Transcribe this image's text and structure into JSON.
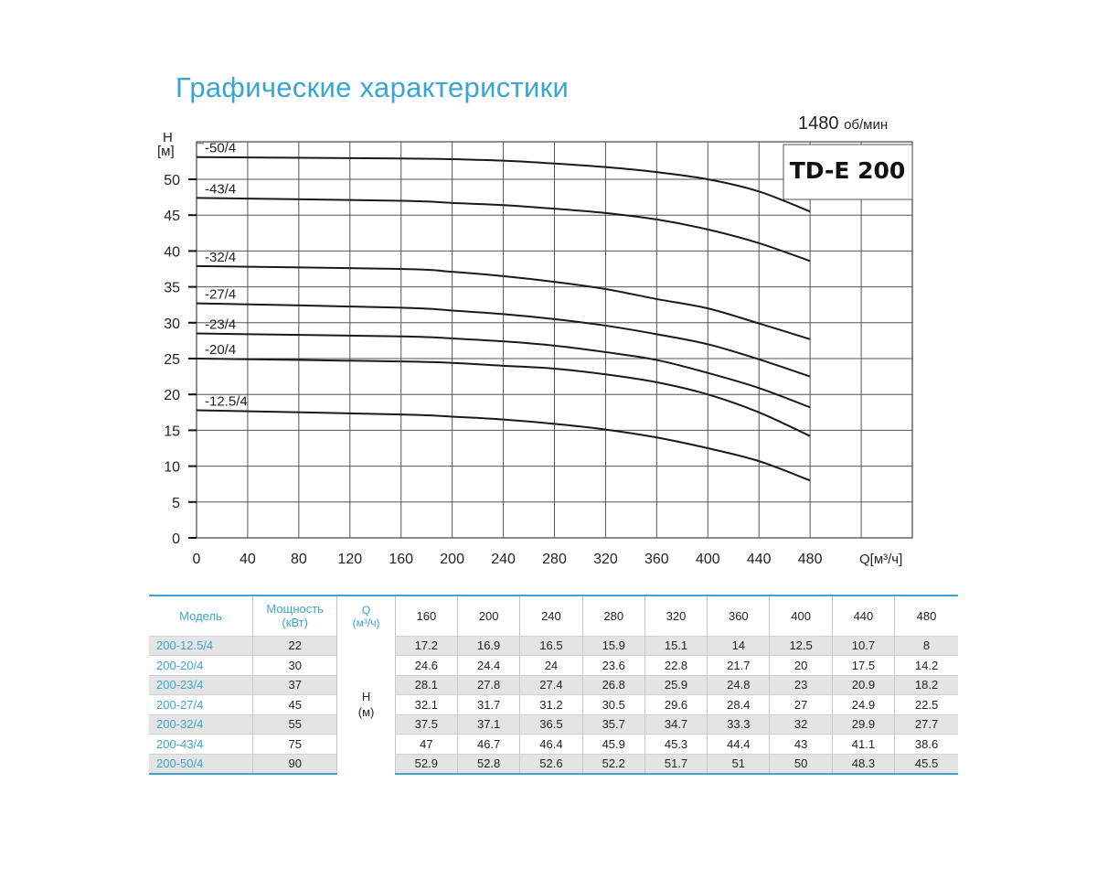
{
  "page": {
    "title": "Графические характеристики"
  },
  "chart_data": {
    "type": "line",
    "speed": "1480",
    "speed_unit": "об/мин",
    "model": "TD-E 200",
    "ylabel_line1": "H",
    "ylabel_line2": "[м]",
    "xlabel": "Q[м³/ч]",
    "x_ticks": [
      0,
      40,
      80,
      120,
      160,
      200,
      240,
      280,
      320,
      360,
      400,
      440,
      480
    ],
    "y_ticks": [
      0,
      5,
      10,
      15,
      20,
      25,
      30,
      35,
      40,
      45,
      50
    ],
    "xlim": [
      0,
      560
    ],
    "ylim": [
      0,
      55
    ],
    "grid": true,
    "series": [
      {
        "name": "-50/4",
        "x": [
          0,
          160,
          200,
          240,
          280,
          320,
          360,
          400,
          440,
          480
        ],
        "y": [
          53.1,
          52.9,
          52.8,
          52.6,
          52.2,
          51.7,
          51,
          50,
          48.3,
          45.5
        ]
      },
      {
        "name": "-43/4",
        "x": [
          0,
          160,
          200,
          240,
          280,
          320,
          360,
          400,
          440,
          480
        ],
        "y": [
          47.4,
          47,
          46.7,
          46.4,
          45.9,
          45.3,
          44.4,
          43,
          41.1,
          38.6
        ]
      },
      {
        "name": "-32/4",
        "x": [
          0,
          160,
          200,
          240,
          280,
          320,
          360,
          400,
          440,
          480
        ],
        "y": [
          37.9,
          37.5,
          37.1,
          36.5,
          35.7,
          34.7,
          33.3,
          32,
          29.9,
          27.7
        ]
      },
      {
        "name": "-27/4",
        "x": [
          0,
          160,
          200,
          240,
          280,
          320,
          360,
          400,
          440,
          480
        ],
        "y": [
          32.7,
          32.1,
          31.7,
          31.2,
          30.5,
          29.6,
          28.4,
          27,
          24.9,
          22.5
        ]
      },
      {
        "name": "-23/4",
        "x": [
          0,
          160,
          200,
          240,
          280,
          320,
          360,
          400,
          440,
          480
        ],
        "y": [
          28.5,
          28.1,
          27.8,
          27.4,
          26.8,
          25.9,
          24.8,
          23,
          20.9,
          18.2
        ]
      },
      {
        "name": "-20/4",
        "x": [
          0,
          160,
          200,
          240,
          280,
          320,
          360,
          400,
          440,
          480
        ],
        "y": [
          25,
          24.6,
          24.4,
          24,
          23.6,
          22.8,
          21.7,
          20,
          17.5,
          14.2
        ]
      },
      {
        "name": "-12.5/4",
        "x": [
          0,
          160,
          200,
          240,
          280,
          320,
          360,
          400,
          440,
          480
        ],
        "y": [
          17.8,
          17.2,
          16.9,
          16.5,
          15.9,
          15.1,
          14,
          12.5,
          10.7,
          8
        ]
      }
    ]
  },
  "table": {
    "header": {
      "model": "Модель",
      "power_line1": "Мощность",
      "power_line2": "(кВт)",
      "q_line1": "Q",
      "q_line2": "(м³/ч)",
      "q_values": [
        "160",
        "200",
        "240",
        "280",
        "320",
        "360",
        "400",
        "440",
        "480"
      ]
    },
    "h_line1": "H",
    "h_line2": "(м)",
    "rows": [
      {
        "model": "200-12.5/4",
        "power": "22",
        "h": [
          "17.2",
          "16.9",
          "16.5",
          "15.9",
          "15.1",
          "14",
          "12.5",
          "10.7",
          "8"
        ]
      },
      {
        "model": "200-20/4",
        "power": "30",
        "h": [
          "24.6",
          "24.4",
          "24",
          "23.6",
          "22.8",
          "21.7",
          "20",
          "17.5",
          "14.2"
        ]
      },
      {
        "model": "200-23/4",
        "power": "37",
        "h": [
          "28.1",
          "27.8",
          "27.4",
          "26.8",
          "25.9",
          "24.8",
          "23",
          "20.9",
          "18.2"
        ]
      },
      {
        "model": "200-27/4",
        "power": "45",
        "h": [
          "32.1",
          "31.7",
          "31.2",
          "30.5",
          "29.6",
          "28.4",
          "27",
          "24.9",
          "22.5"
        ]
      },
      {
        "model": "200-32/4",
        "power": "55",
        "h": [
          "37.5",
          "37.1",
          "36.5",
          "35.7",
          "34.7",
          "33.3",
          "32",
          "29.9",
          "27.7"
        ]
      },
      {
        "model": "200-43/4",
        "power": "75",
        "h": [
          "47",
          "46.7",
          "46.4",
          "45.9",
          "45.3",
          "44.4",
          "43",
          "41.1",
          "38.6"
        ]
      },
      {
        "model": "200-50/4",
        "power": "90",
        "h": [
          "52.9",
          "52.8",
          "52.6",
          "52.2",
          "51.7",
          "51",
          "50",
          "48.3",
          "45.5"
        ]
      }
    ]
  }
}
